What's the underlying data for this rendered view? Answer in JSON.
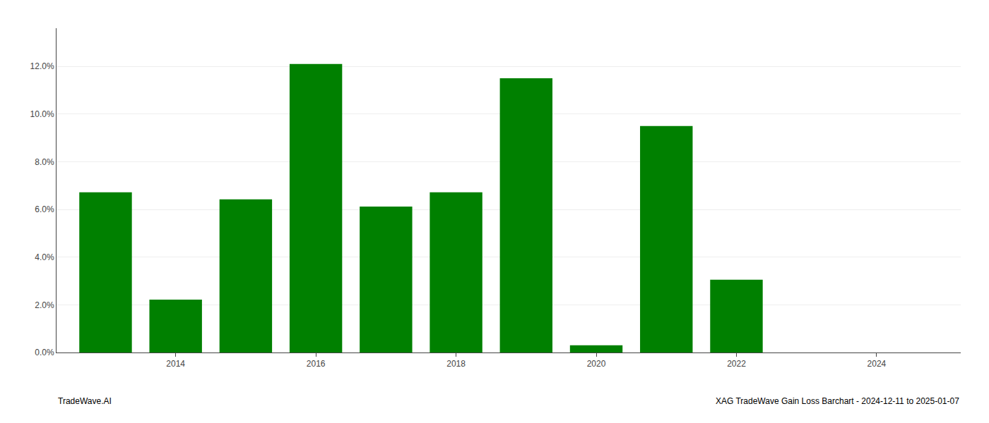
{
  "chart_data": {
    "type": "bar",
    "x": [
      2013,
      2014,
      2015,
      2016,
      2017,
      2018,
      2019,
      2020,
      2021,
      2022,
      2023
    ],
    "values": [
      0.0672,
      0.0222,
      0.0642,
      0.121,
      0.0612,
      0.0672,
      0.115,
      0.003,
      0.095,
      0.0305,
      0.0
    ],
    "color": "#008000",
    "xlim": [
      2012.3,
      2025.2
    ],
    "xticks": [
      2014,
      2016,
      2018,
      2020,
      2022,
      2024
    ],
    "ylim": [
      0,
      0.136
    ],
    "yticks": [
      {
        "value": 0.0,
        "label": "0.0%"
      },
      {
        "value": 0.02,
        "label": "2.0%"
      },
      {
        "value": 0.04,
        "label": "4.0%"
      },
      {
        "value": 0.06,
        "label": "6.0%"
      },
      {
        "value": 0.08,
        "label": "8.0%"
      },
      {
        "value": 0.1,
        "label": "10.0%"
      },
      {
        "value": 0.12,
        "label": "12.0%"
      }
    ],
    "grid": true,
    "annotations": [
      "TradeWave.AI",
      "XAG TradeWave Gain Loss Barchart - 2024-12-11 to 2025-01-07"
    ]
  }
}
